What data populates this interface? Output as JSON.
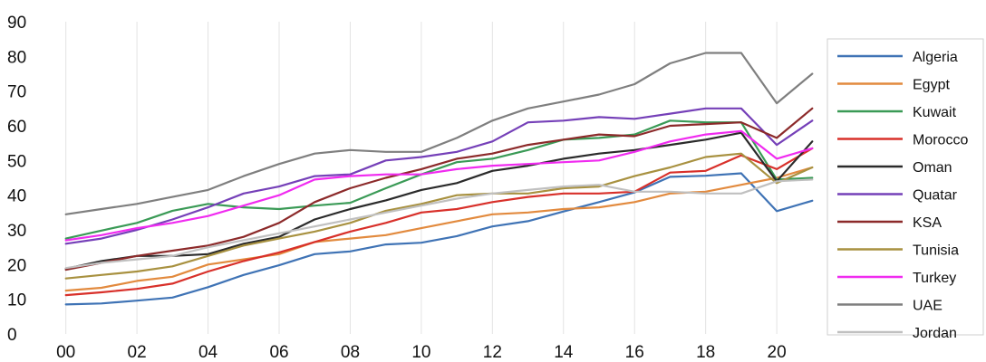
{
  "chart_data": {
    "type": "line",
    "title": "",
    "xlabel": "",
    "ylabel": "",
    "x": [
      2000,
      2001,
      2002,
      2003,
      2004,
      2005,
      2006,
      2007,
      2008,
      2009,
      2010,
      2011,
      2012,
      2013,
      2014,
      2015,
      2016,
      2017,
      2018,
      2019,
      2020,
      2021
    ],
    "xticks": [
      {
        "value": 2000,
        "label": "00"
      },
      {
        "value": 2002,
        "label": "02"
      },
      {
        "value": 2004,
        "label": "04"
      },
      {
        "value": 2006,
        "label": "06"
      },
      {
        "value": 2008,
        "label": "08"
      },
      {
        "value": 2010,
        "label": "10"
      },
      {
        "value": 2012,
        "label": "12"
      },
      {
        "value": 2014,
        "label": "14"
      },
      {
        "value": 2016,
        "label": "16"
      },
      {
        "value": 2018,
        "label": "18"
      },
      {
        "value": 2020,
        "label": "20"
      }
    ],
    "xlim": [
      1999.6,
      2021.4
    ],
    "ylim": [
      0,
      90
    ],
    "yticks": [
      0,
      10,
      20,
      30,
      40,
      50,
      60,
      70,
      80,
      90
    ],
    "grid": "vertical",
    "legend_position": "right",
    "series": [
      {
        "name": "Algeria",
        "color": "#3f73b5",
        "values": [
          8.5,
          8.8,
          9.6,
          10.5,
          13.5,
          17.0,
          19.8,
          23.0,
          23.8,
          25.8,
          26.3,
          28.2,
          31.0,
          32.5,
          35.3,
          38.0,
          40.8,
          45.3,
          45.6,
          46.3,
          35.4,
          38.4
        ]
      },
      {
        "name": "Egypt",
        "color": "#e28a3e",
        "values": [
          12.5,
          13.3,
          15.3,
          16.5,
          20.0,
          21.5,
          23.0,
          26.5,
          27.5,
          28.5,
          30.5,
          32.5,
          34.5,
          35.0,
          36.0,
          36.5,
          38.0,
          40.5,
          41.0,
          43.0,
          45.0,
          48.0
        ]
      },
      {
        "name": "Kuwait",
        "color": "#3a9a56",
        "values": [
          27.5,
          29.8,
          32.0,
          35.5,
          37.5,
          36.5,
          36.0,
          37.0,
          37.8,
          42.0,
          46.0,
          49.5,
          50.5,
          53.0,
          56.0,
          56.5,
          57.5,
          61.5,
          61.0,
          61.0,
          44.5,
          45.0
        ]
      },
      {
        "name": "Morocco",
        "color": "#d8302a",
        "values": [
          11.2,
          12.0,
          13.0,
          14.5,
          18.0,
          21.0,
          23.5,
          26.5,
          29.5,
          32.0,
          35.0,
          36.0,
          38.0,
          39.5,
          40.5,
          40.5,
          41.0,
          46.5,
          47.0,
          51.5,
          47.5,
          53.5
        ]
      },
      {
        "name": "Oman",
        "color": "#2b2b2b",
        "values": [
          18.8,
          21.0,
          22.5,
          22.5,
          23.0,
          26.0,
          28.0,
          33.0,
          36.0,
          38.5,
          41.5,
          43.5,
          47.0,
          48.5,
          50.5,
          52.0,
          53.0,
          54.5,
          56.0,
          58.0,
          44.0,
          55.5
        ]
      },
      {
        "name": "Quatar",
        "color": "#7540b8",
        "values": [
          26.0,
          27.5,
          30.0,
          33.0,
          36.5,
          40.5,
          42.5,
          45.5,
          46.0,
          50.0,
          51.0,
          52.5,
          55.5,
          61.0,
          61.5,
          62.5,
          62.0,
          63.5,
          65.0,
          65.0,
          54.5,
          61.5
        ]
      },
      {
        "name": "KSA",
        "color": "#8c2a2a",
        "values": [
          18.5,
          20.5,
          22.5,
          24.0,
          25.5,
          28.0,
          32.0,
          38.0,
          42.0,
          45.0,
          47.5,
          50.5,
          52.0,
          54.5,
          56.0,
          57.5,
          57.0,
          60.0,
          60.5,
          61.0,
          56.5,
          65.0
        ]
      },
      {
        "name": "Tunisia",
        "color": "#a89140",
        "values": [
          16.0,
          17.0,
          18.0,
          19.5,
          22.5,
          25.5,
          27.5,
          29.5,
          32.0,
          35.5,
          37.5,
          40.0,
          40.5,
          40.5,
          42.0,
          42.5,
          45.5,
          48.0,
          51.0,
          52.0,
          43.5,
          48.0
        ]
      },
      {
        "name": "Turkey",
        "color": "#f02bf0",
        "values": [
          27.0,
          28.5,
          30.5,
          32.0,
          34.0,
          37.0,
          40.0,
          44.5,
          45.5,
          46.0,
          46.0,
          47.5,
          48.5,
          49.0,
          49.5,
          50.0,
          52.5,
          55.5,
          57.5,
          58.5,
          50.5,
          53.5
        ]
      },
      {
        "name": "UAE",
        "color": "#7f7f7f",
        "values": [
          34.5,
          36.0,
          37.5,
          39.5,
          41.5,
          45.5,
          49.0,
          52.0,
          53.0,
          52.5,
          52.5,
          56.5,
          61.5,
          65.0,
          67.0,
          69.0,
          72.0,
          78.0,
          81.0,
          81.0,
          66.5,
          75.0
        ]
      },
      {
        "name": "Jordan",
        "color": "#c0c0c0",
        "values": [
          19.0,
          20.5,
          21.5,
          22.5,
          25.0,
          27.0,
          29.0,
          31.0,
          33.0,
          35.0,
          37.0,
          39.0,
          40.5,
          41.5,
          42.5,
          43.0,
          41.0,
          41.0,
          40.5,
          40.5,
          44.0,
          44.5
        ]
      }
    ]
  }
}
